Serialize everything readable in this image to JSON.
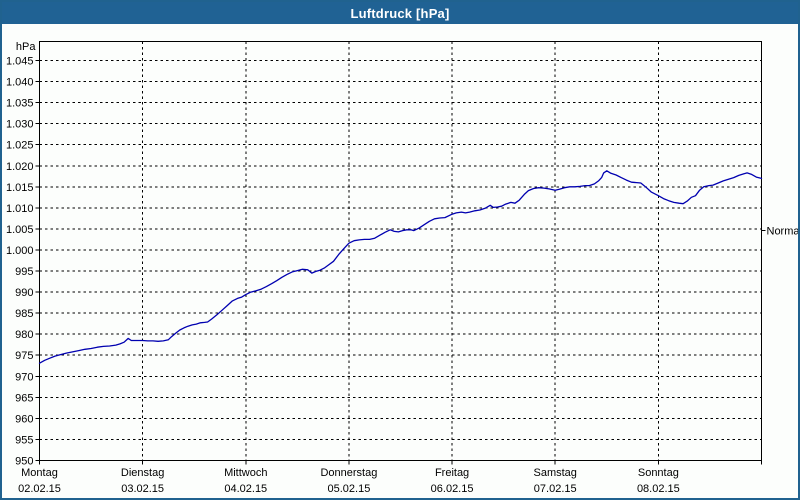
{
  "window": {
    "title": "Luftdruck [hPa]"
  },
  "colors": {
    "titlebar_bg": "#206294",
    "titlebar_text": "#ffffff",
    "outer_border": "#20628f",
    "chart_bg": "#fcfefc",
    "axis": "#000000",
    "grid": "#000000",
    "line": "#0000b0",
    "label_text": "#000000"
  },
  "axis_unit_label": "hPa",
  "normal_marker": {
    "label": "Normal",
    "hpa": 1004.6
  },
  "chart_data": {
    "type": "line",
    "title": "Luftdruck [hPa]",
    "ylabel": "hPa",
    "ylim": [
      950,
      1045
    ],
    "ytick_step": 5,
    "grid": "dashed",
    "legend_position": "none",
    "yticks": [
      {
        "value": 950,
        "label": "950"
      },
      {
        "value": 955,
        "label": "955"
      },
      {
        "value": 960,
        "label": "960"
      },
      {
        "value": 965,
        "label": "965"
      },
      {
        "value": 970,
        "label": "970"
      },
      {
        "value": 975,
        "label": "975"
      },
      {
        "value": 980,
        "label": "980"
      },
      {
        "value": 985,
        "label": "985"
      },
      {
        "value": 990,
        "label": "990"
      },
      {
        "value": 995,
        "label": "995"
      },
      {
        "value": 1000,
        "label": "1.000"
      },
      {
        "value": 1005,
        "label": "1.005"
      },
      {
        "value": 1010,
        "label": "1.010"
      },
      {
        "value": 1015,
        "label": "1.015"
      },
      {
        "value": 1020,
        "label": "1.020"
      },
      {
        "value": 1025,
        "label": "1.025"
      },
      {
        "value": 1030,
        "label": "1.030"
      },
      {
        "value": 1035,
        "label": "1.035"
      },
      {
        "value": 1040,
        "label": "1.040"
      },
      {
        "value": 1045,
        "label": "1.045"
      }
    ],
    "categories": [
      {
        "day": "Montag",
        "date": "02.02.15"
      },
      {
        "day": "Dienstag",
        "date": "03.02.15"
      },
      {
        "day": "Mittwoch",
        "date": "04.02.15"
      },
      {
        "day": "Donnerstag",
        "date": "05.02.15"
      },
      {
        "day": "Freitag",
        "date": "06.02.15"
      },
      {
        "day": "Samstag",
        "date": "07.02.15"
      },
      {
        "day": "Sonntag",
        "date": "08.02.15"
      }
    ],
    "annotations": [
      {
        "label": "Normal",
        "y": 1004.6,
        "side": "right"
      }
    ],
    "series": [
      {
        "name": "Luftdruck",
        "unit": "hPa",
        "points": [
          [
            0.0,
            973.1
          ],
          [
            0.05,
            973.8
          ],
          [
            0.1,
            974.3
          ],
          [
            0.15,
            974.8
          ],
          [
            0.2,
            975.1
          ],
          [
            0.26,
            975.5
          ],
          [
            0.32,
            975.8
          ],
          [
            0.38,
            976.1
          ],
          [
            0.44,
            976.4
          ],
          [
            0.5,
            976.6
          ],
          [
            0.56,
            976.9
          ],
          [
            0.62,
            977.1
          ],
          [
            0.68,
            977.2
          ],
          [
            0.74,
            977.4
          ],
          [
            0.78,
            977.7
          ],
          [
            0.82,
            978.1
          ],
          [
            0.86,
            979.0
          ],
          [
            0.89,
            978.5
          ],
          [
            0.94,
            978.5
          ],
          [
            1.0,
            978.5
          ],
          [
            1.05,
            978.4
          ],
          [
            1.1,
            978.4
          ],
          [
            1.15,
            978.3
          ],
          [
            1.2,
            978.4
          ],
          [
            1.25,
            978.7
          ],
          [
            1.28,
            979.4
          ],
          [
            1.32,
            980.2
          ],
          [
            1.36,
            981.0
          ],
          [
            1.4,
            981.5
          ],
          [
            1.44,
            981.9
          ],
          [
            1.48,
            982.2
          ],
          [
            1.52,
            982.4
          ],
          [
            1.56,
            982.7
          ],
          [
            1.6,
            982.8
          ],
          [
            1.63,
            982.9
          ],
          [
            1.67,
            983.6
          ],
          [
            1.72,
            984.6
          ],
          [
            1.77,
            985.7
          ],
          [
            1.82,
            986.8
          ],
          [
            1.87,
            987.9
          ],
          [
            1.92,
            988.5
          ],
          [
            1.96,
            988.8
          ],
          [
            2.0,
            989.4
          ],
          [
            2.05,
            990.0
          ],
          [
            2.1,
            990.3
          ],
          [
            2.15,
            990.7
          ],
          [
            2.2,
            991.3
          ],
          [
            2.25,
            992.0
          ],
          [
            2.3,
            992.7
          ],
          [
            2.35,
            993.5
          ],
          [
            2.4,
            994.2
          ],
          [
            2.45,
            994.8
          ],
          [
            2.5,
            995.1
          ],
          [
            2.55,
            995.4
          ],
          [
            2.6,
            995.3
          ],
          [
            2.64,
            994.5
          ],
          [
            2.68,
            994.9
          ],
          [
            2.72,
            995.2
          ],
          [
            2.76,
            995.7
          ],
          [
            2.8,
            996.4
          ],
          [
            2.85,
            997.3
          ],
          [
            2.9,
            998.9
          ],
          [
            2.95,
            1000.3
          ],
          [
            3.0,
            1001.6
          ],
          [
            3.05,
            1002.2
          ],
          [
            3.1,
            1002.4
          ],
          [
            3.15,
            1002.5
          ],
          [
            3.2,
            1002.5
          ],
          [
            3.25,
            1002.8
          ],
          [
            3.3,
            1003.5
          ],
          [
            3.35,
            1004.2
          ],
          [
            3.4,
            1004.8
          ],
          [
            3.44,
            1004.4
          ],
          [
            3.48,
            1004.3
          ],
          [
            3.52,
            1004.6
          ],
          [
            3.56,
            1004.8
          ],
          [
            3.6,
            1004.8
          ],
          [
            3.63,
            1004.6
          ],
          [
            3.68,
            1005.2
          ],
          [
            3.73,
            1006.0
          ],
          [
            3.78,
            1006.8
          ],
          [
            3.83,
            1007.4
          ],
          [
            3.88,
            1007.6
          ],
          [
            3.93,
            1007.7
          ],
          [
            4.0,
            1008.5
          ],
          [
            4.04,
            1008.8
          ],
          [
            4.09,
            1009.0
          ],
          [
            4.13,
            1008.8
          ],
          [
            4.17,
            1009.0
          ],
          [
            4.22,
            1009.3
          ],
          [
            4.27,
            1009.5
          ],
          [
            4.32,
            1009.9
          ],
          [
            4.37,
            1010.6
          ],
          [
            4.4,
            1010.1
          ],
          [
            4.44,
            1010.2
          ],
          [
            4.48,
            1010.4
          ],
          [
            4.52,
            1010.9
          ],
          [
            4.57,
            1011.3
          ],
          [
            4.61,
            1011.1
          ],
          [
            4.65,
            1011.8
          ],
          [
            4.7,
            1013.2
          ],
          [
            4.74,
            1014.1
          ],
          [
            4.79,
            1014.6
          ],
          [
            4.84,
            1014.8
          ],
          [
            4.89,
            1014.7
          ],
          [
            4.94,
            1014.5
          ],
          [
            5.0,
            1014.2
          ],
          [
            5.04,
            1014.4
          ],
          [
            5.09,
            1014.8
          ],
          [
            5.14,
            1015.0
          ],
          [
            5.19,
            1015.0
          ],
          [
            5.24,
            1015.1
          ],
          [
            5.29,
            1015.3
          ],
          [
            5.33,
            1015.3
          ],
          [
            5.38,
            1015.7
          ],
          [
            5.42,
            1016.4
          ],
          [
            5.45,
            1017.2
          ],
          [
            5.47,
            1018.3
          ],
          [
            5.5,
            1018.8
          ],
          [
            5.54,
            1018.2
          ],
          [
            5.59,
            1017.8
          ],
          [
            5.64,
            1017.2
          ],
          [
            5.69,
            1016.6
          ],
          [
            5.74,
            1016.1
          ],
          [
            5.79,
            1016.0
          ],
          [
            5.83,
            1015.9
          ],
          [
            5.88,
            1014.9
          ],
          [
            5.93,
            1013.8
          ],
          [
            6.0,
            1012.9
          ],
          [
            6.05,
            1012.2
          ],
          [
            6.1,
            1011.7
          ],
          [
            6.15,
            1011.3
          ],
          [
            6.2,
            1011.1
          ],
          [
            6.24,
            1011.0
          ],
          [
            6.28,
            1011.6
          ],
          [
            6.32,
            1012.5
          ],
          [
            6.36,
            1012.9
          ],
          [
            6.4,
            1014.2
          ],
          [
            6.44,
            1015.0
          ],
          [
            6.49,
            1015.3
          ],
          [
            6.53,
            1015.4
          ],
          [
            6.58,
            1015.9
          ],
          [
            6.63,
            1016.4
          ],
          [
            6.68,
            1016.8
          ],
          [
            6.73,
            1017.2
          ],
          [
            6.78,
            1017.7
          ],
          [
            6.83,
            1018.1
          ],
          [
            6.86,
            1018.3
          ],
          [
            6.9,
            1018.0
          ],
          [
            6.95,
            1017.3
          ],
          [
            7.0,
            1017.0
          ]
        ]
      }
    ]
  }
}
